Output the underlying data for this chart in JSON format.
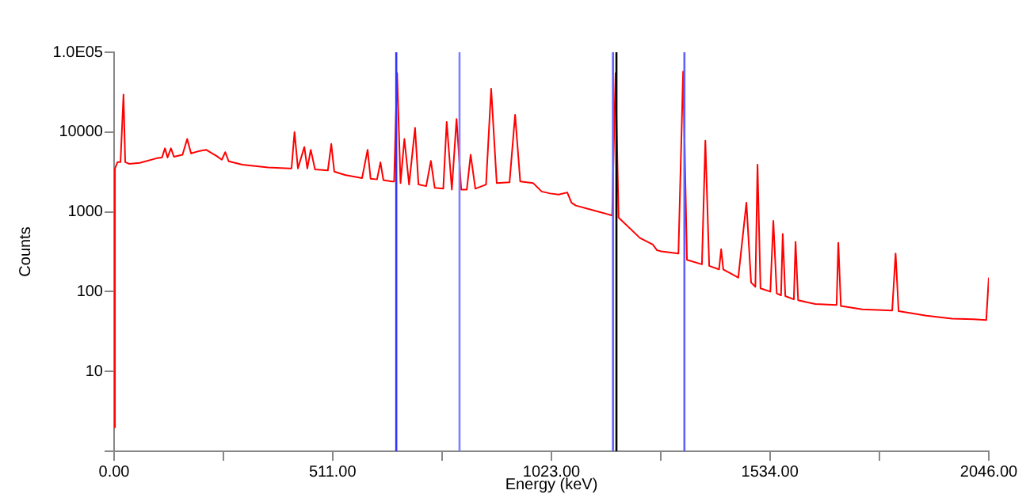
{
  "chart_data": {
    "type": "line",
    "xlabel": "Energy (keV)",
    "ylabel": "Counts",
    "xlim": [
      0,
      2046
    ],
    "ylim": [
      1,
      100000
    ],
    "log": "y",
    "grid": false,
    "legend": false,
    "marker": "none",
    "line_style": "solid",
    "xticks": [
      {
        "value": 0,
        "label": "0.00"
      },
      {
        "value": 255.5,
        "label": null
      },
      {
        "value": 511,
        "label": "511.00"
      },
      {
        "value": 767,
        "label": null
      },
      {
        "value": 1023,
        "label": "1023.00"
      },
      {
        "value": 1278,
        "label": null
      },
      {
        "value": 1534,
        "label": "1534.00"
      },
      {
        "value": 1790,
        "label": null
      },
      {
        "value": 2046,
        "label": "2046.00"
      }
    ],
    "yticks": [
      {
        "value": 1,
        "label": null
      },
      10,
      100,
      1000,
      10000,
      {
        "value": 100000,
        "label": "1.0E05"
      }
    ],
    "ref_lines": [
      {
        "axis": "x",
        "value": 660,
        "color": "#3030ff"
      },
      {
        "axis": "x",
        "value": 808,
        "color": "#8080ff"
      },
      {
        "axis": "x",
        "value": 1167,
        "color": "#6060ff"
      },
      {
        "axis": "x",
        "value": 1175,
        "color": "#000000"
      },
      {
        "axis": "x",
        "value": 1334,
        "color": "#6060ff"
      }
    ],
    "series": [
      {
        "color": "#ff0000",
        "x": [
          0,
          2,
          8,
          15,
          22,
          26,
          35,
          60,
          100,
          112,
          119,
          125,
          133,
          140,
          160,
          171,
          180,
          200,
          215,
          240,
          252,
          260,
          268,
          300,
          360,
          410,
          415,
          422,
          430,
          445,
          452,
          460,
          470,
          500,
          508,
          515,
          540,
          580,
          593,
          600,
          615,
          623,
          630,
          650,
          655,
          662,
          670,
          679,
          690,
          704,
          712,
          730,
          741,
          750,
          770,
          778,
          790,
          801,
          812,
          825,
          834,
          845,
          870,
          882,
          895,
          925,
          938,
          950,
          980,
          1000,
          1020,
          1040,
          1060,
          1070,
          1080,
          1120,
          1150,
          1165,
          1173,
          1180,
          1230,
          1260,
          1270,
          1280,
          1320,
          1331,
          1340,
          1375,
          1383,
          1392,
          1415,
          1420,
          1425,
          1460,
          1479,
          1490,
          1500,
          1505,
          1512,
          1535,
          1542,
          1550,
          1560,
          1564,
          1570,
          1590,
          1594,
          1600,
          1640,
          1690,
          1694,
          1700,
          1750,
          1820,
          1828,
          1835,
          1900,
          1960,
          2010,
          2040,
          2046
        ],
        "values": [
          2,
          3500,
          4200,
          4200,
          29500,
          4200,
          4000,
          4100,
          4700,
          4800,
          6250,
          4800,
          6250,
          4900,
          5200,
          8200,
          5400,
          5800,
          6000,
          5000,
          4500,
          5600,
          4300,
          3900,
          3600,
          3500,
          3500,
          10000,
          3500,
          6500,
          3500,
          6000,
          3400,
          3300,
          7100,
          3200,
          2900,
          2650,
          6000,
          2600,
          2550,
          4170,
          2500,
          2400,
          2400,
          55000,
          2300,
          8200,
          2200,
          11300,
          2200,
          2100,
          4350,
          2000,
          1950,
          13400,
          1900,
          14600,
          1900,
          1900,
          5200,
          1950,
          2200,
          35000,
          2300,
          2350,
          16500,
          2400,
          2300,
          1800,
          1700,
          1650,
          1750,
          1300,
          1200,
          1050,
          950,
          900,
          55000,
          850,
          470,
          390,
          330,
          320,
          300,
          57000,
          250,
          220,
          7800,
          210,
          190,
          340,
          190,
          150,
          1300,
          130,
          115,
          3900,
          110,
          100,
          770,
          95,
          90,
          530,
          88,
          80,
          420,
          78,
          70,
          68,
          410,
          66,
          60,
          58,
          300,
          57,
          50,
          46,
          45,
          44,
          150
        ]
      }
    ]
  }
}
